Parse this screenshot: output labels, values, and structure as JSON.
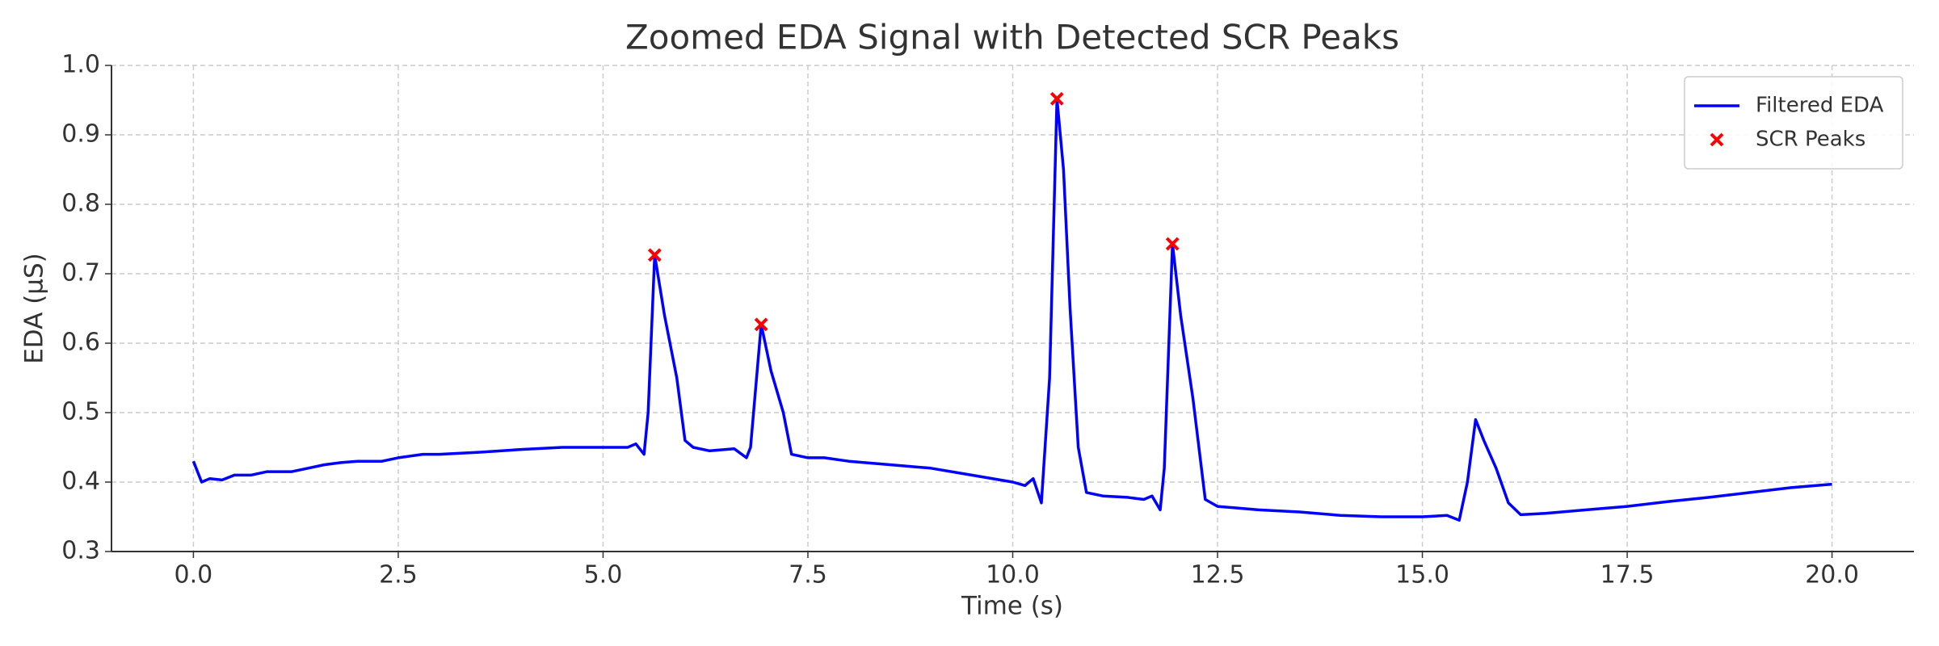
{
  "chart_data": {
    "type": "line",
    "title": "Zoomed EDA Signal with Detected SCR Peaks",
    "x_label": "Time (s)",
    "y_label": "EDA (µS)",
    "xlim": [
      -1,
      21
    ],
    "ylim": [
      0.3,
      1.0
    ],
    "xticks": [
      {
        "value": 0,
        "label": "0.0"
      },
      2.5,
      {
        "value": 5,
        "label": "5.0"
      },
      7.5,
      {
        "value": 10,
        "label": "10.0"
      },
      12.5,
      {
        "value": 15,
        "label": "15.0"
      },
      17.5,
      {
        "value": 20,
        "label": "20.0"
      }
    ],
    "yticks": [
      0.3,
      0.4,
      0.5,
      0.6,
      0.7,
      0.8,
      0.9,
      {
        "value": 1.0,
        "label": "1.0"
      }
    ],
    "grid": true,
    "legend": "upper right",
    "series": [
      {
        "name": "Filtered EDA",
        "color": "#0000ff",
        "type": "line",
        "x": [
          0.0,
          0.1,
          0.2,
          0.35,
          0.5,
          0.7,
          0.9,
          1.2,
          1.4,
          1.6,
          1.8,
          2.0,
          2.3,
          2.5,
          2.8,
          3.0,
          3.5,
          4.0,
          4.5,
          5.0,
          5.3,
          5.4,
          5.5,
          5.55,
          5.63,
          5.75,
          5.9,
          6.0,
          6.1,
          6.3,
          6.6,
          6.75,
          6.8,
          6.93,
          7.05,
          7.2,
          7.3,
          7.5,
          7.7,
          8.0,
          8.5,
          9.0,
          9.5,
          10.0,
          10.15,
          10.25,
          10.35,
          10.45,
          10.54,
          10.62,
          10.7,
          10.8,
          10.9,
          11.1,
          11.4,
          11.6,
          11.7,
          11.8,
          11.85,
          11.95,
          12.05,
          12.2,
          12.35,
          12.5,
          13.0,
          13.5,
          14.0,
          14.5,
          15.0,
          15.3,
          15.45,
          15.55,
          15.65,
          15.75,
          15.9,
          16.05,
          16.2,
          16.5,
          17.0,
          17.5,
          18.0,
          18.5,
          19.0,
          19.5,
          20.0
        ],
        "values": [
          0.43,
          0.4,
          0.405,
          0.403,
          0.41,
          0.41,
          0.415,
          0.415,
          0.42,
          0.425,
          0.428,
          0.43,
          0.43,
          0.435,
          0.44,
          0.44,
          0.443,
          0.447,
          0.45,
          0.45,
          0.45,
          0.455,
          0.44,
          0.5,
          0.727,
          0.64,
          0.55,
          0.46,
          0.45,
          0.445,
          0.448,
          0.435,
          0.45,
          0.627,
          0.56,
          0.5,
          0.44,
          0.435,
          0.435,
          0.43,
          0.425,
          0.42,
          0.41,
          0.4,
          0.395,
          0.405,
          0.37,
          0.55,
          0.952,
          0.85,
          0.65,
          0.45,
          0.385,
          0.38,
          0.378,
          0.375,
          0.38,
          0.36,
          0.42,
          0.743,
          0.64,
          0.52,
          0.375,
          0.365,
          0.36,
          0.357,
          0.352,
          0.35,
          0.35,
          0.352,
          0.345,
          0.4,
          0.49,
          0.46,
          0.42,
          0.37,
          0.353,
          0.355,
          0.36,
          0.365,
          0.372,
          0.378,
          0.385,
          0.392,
          0.397
        ]
      },
      {
        "name": "SCR Peaks",
        "color": "#ff0000",
        "type": "scatter",
        "x": [
          5.63,
          6.93,
          10.54,
          11.95
        ],
        "values": [
          0.727,
          0.627,
          0.952,
          0.743
        ]
      }
    ]
  }
}
